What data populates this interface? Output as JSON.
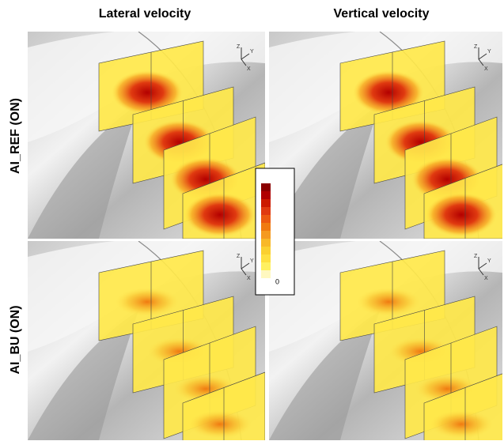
{
  "column_titles": [
    "Lateral velocity",
    "Vertical velocity"
  ],
  "row_labels": [
    "AI_REF (ON)",
    "AI_BU (ON)"
  ],
  "colorbar": {
    "label": "0"
  },
  "axes_triad": {
    "z": "Z",
    "y": "Y",
    "x": "X"
  }
}
